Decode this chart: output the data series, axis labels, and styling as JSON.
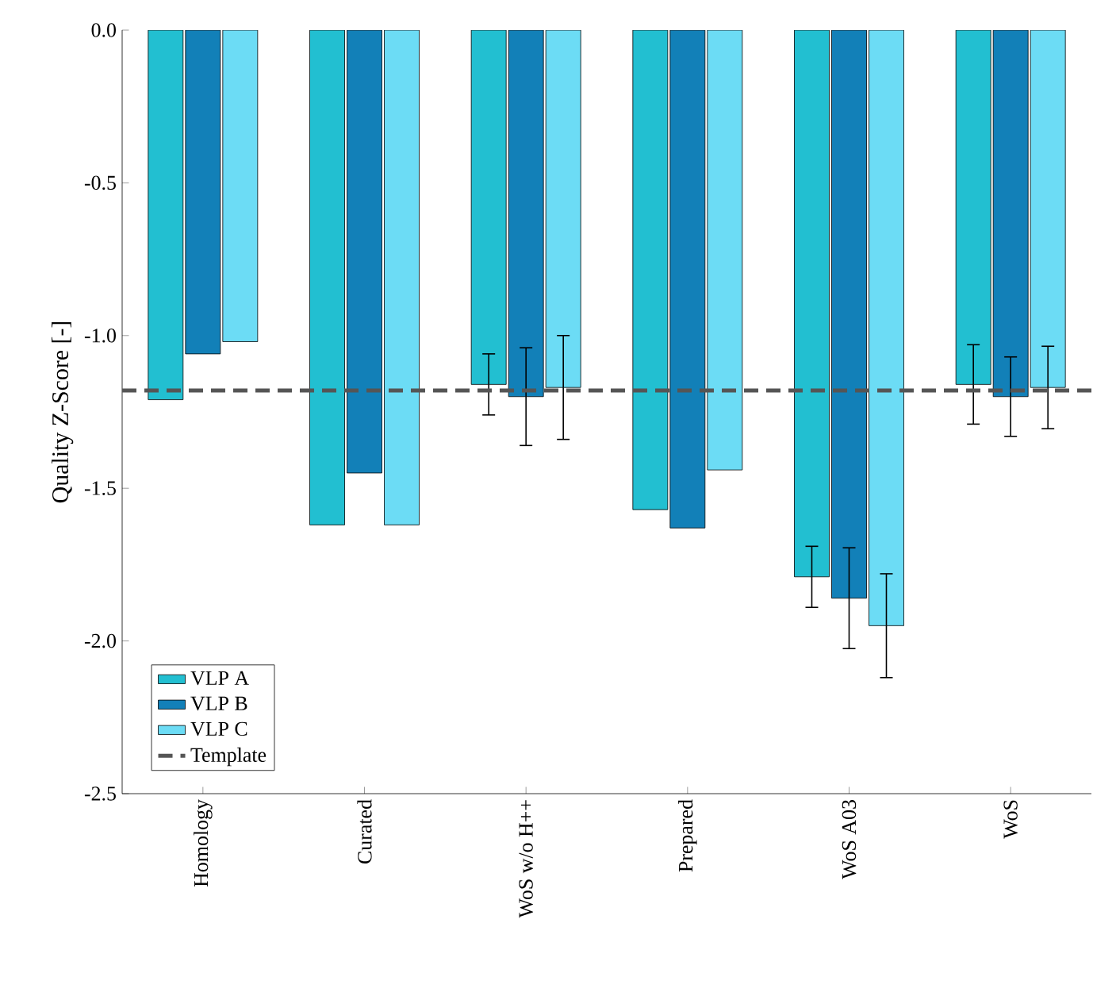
{
  "chart_data": {
    "type": "bar",
    "ylabel": "Quality Z-Score [-]",
    "categories": [
      "Homology",
      "Curated",
      "WoS w/o H++",
      "Prepared",
      "WoS A03",
      "WoS"
    ],
    "series": [
      {
        "name": "VLP A",
        "color": "#22bfd1",
        "values": [
          -1.21,
          -1.62,
          -1.16,
          -1.57,
          -1.79,
          -1.16
        ],
        "errors": [
          null,
          null,
          0.1,
          null,
          0.1,
          0.13
        ]
      },
      {
        "name": "VLP B",
        "color": "#1280b8",
        "values": [
          -1.06,
          -1.45,
          -1.2,
          -1.63,
          -1.86,
          -1.2
        ],
        "errors": [
          null,
          null,
          0.16,
          null,
          0.165,
          0.13
        ]
      },
      {
        "name": "VLP C",
        "color": "#6cdcf5",
        "values": [
          -1.02,
          -1.62,
          -1.17,
          -1.44,
          -1.95,
          -1.17
        ],
        "errors": [
          null,
          null,
          0.17,
          null,
          0.17,
          0.135
        ]
      }
    ],
    "ref_lines": [
      {
        "axis": "y",
        "value": -1.18,
        "label": "Template",
        "color": "#555555",
        "line_style": "dashed"
      }
    ],
    "ylim": [
      -2.5,
      0
    ],
    "yticks": [
      {
        "value": -2.5,
        "label": "-2.5"
      },
      {
        "value": -2.0,
        "label": "-2.0"
      },
      {
        "value": -1.5,
        "label": "-1.5"
      },
      {
        "value": -1.0,
        "label": "-1.0"
      },
      {
        "value": -0.5,
        "label": "-0.5"
      },
      {
        "value": 0,
        "label": "0.0"
      }
    ],
    "legend": "bottom left"
  }
}
